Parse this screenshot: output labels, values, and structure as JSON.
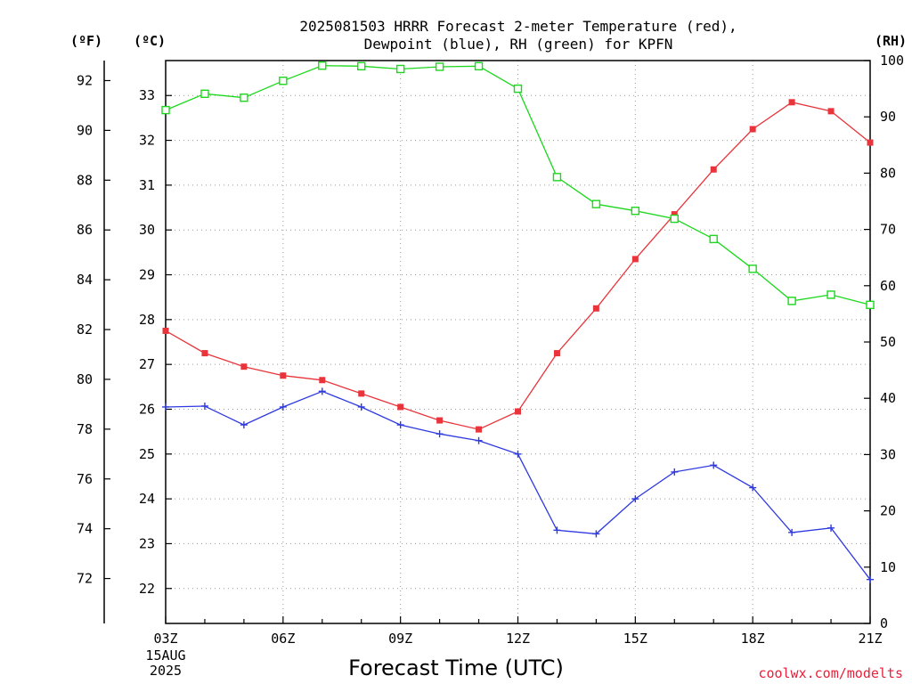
{
  "chart_data": {
    "type": "line",
    "title_lines": [
      "2025081503 HRRR Forecast 2-meter Temperature (red),",
      "Dewpoint (blue), RH (green) for KPFN"
    ],
    "xlabel": "Forecast Time (UTC)",
    "x": [
      "03Z",
      "04Z",
      "05Z",
      "06Z",
      "07Z",
      "08Z",
      "09Z",
      "10Z",
      "11Z",
      "12Z",
      "13Z",
      "14Z",
      "15Z",
      "16Z",
      "17Z",
      "18Z",
      "19Z",
      "20Z",
      "21Z"
    ],
    "x_tick_labels": [
      "03Z",
      "06Z",
      "09Z",
      "12Z",
      "15Z",
      "18Z",
      "21Z"
    ],
    "x_date_label": [
      "15AUG",
      "2025"
    ],
    "axes": {
      "fahrenheit": {
        "unit_label": "(ºF)",
        "ticks": [
          72,
          74,
          76,
          78,
          80,
          82,
          84,
          86,
          88,
          90,
          92
        ]
      },
      "celsius": {
        "unit_label": "(ºC)",
        "ticks": [
          22,
          23,
          24,
          25,
          26,
          27,
          28,
          29,
          30,
          31,
          32,
          33
        ],
        "ylim": [
          21.22,
          33.78
        ]
      },
      "rh": {
        "unit_label": "(RH)",
        "ticks": [
          0,
          10,
          20,
          30,
          40,
          50,
          60,
          70,
          80,
          90,
          100
        ],
        "ylim": [
          0,
          100
        ]
      }
    },
    "grid": true,
    "series": [
      {
        "key": "temperature",
        "axis": "celsius",
        "color": "#e8343a",
        "marker": "filled-square",
        "values": [
          27.75,
          27.25,
          26.95,
          26.75,
          26.65,
          26.35,
          26.05,
          25.75,
          25.55,
          25.95,
          27.25,
          28.25,
          29.35,
          30.35,
          31.35,
          32.25,
          32.85,
          32.65,
          31.95
        ]
      },
      {
        "key": "dewpoint",
        "axis": "celsius",
        "color": "#2e3ae0",
        "marker": "plus",
        "values": [
          26.05,
          26.07,
          25.65,
          26.05,
          26.4,
          26.05,
          25.65,
          25.45,
          25.3,
          25.0,
          23.3,
          23.22,
          24.0,
          24.6,
          24.75,
          24.25,
          23.25,
          23.35,
          22.2
        ]
      },
      {
        "key": "rh",
        "axis": "rh",
        "color": "#1cd81c",
        "marker": "open-square",
        "values": [
          91.2,
          94.1,
          93.4,
          96.4,
          99.1,
          99.0,
          98.5,
          98.9,
          99.0,
          95.0,
          79.3,
          74.5,
          73.3,
          71.9,
          68.3,
          63.0,
          57.3,
          58.4,
          56.6
        ]
      }
    ]
  },
  "credit": "coolwx.com/modelts"
}
